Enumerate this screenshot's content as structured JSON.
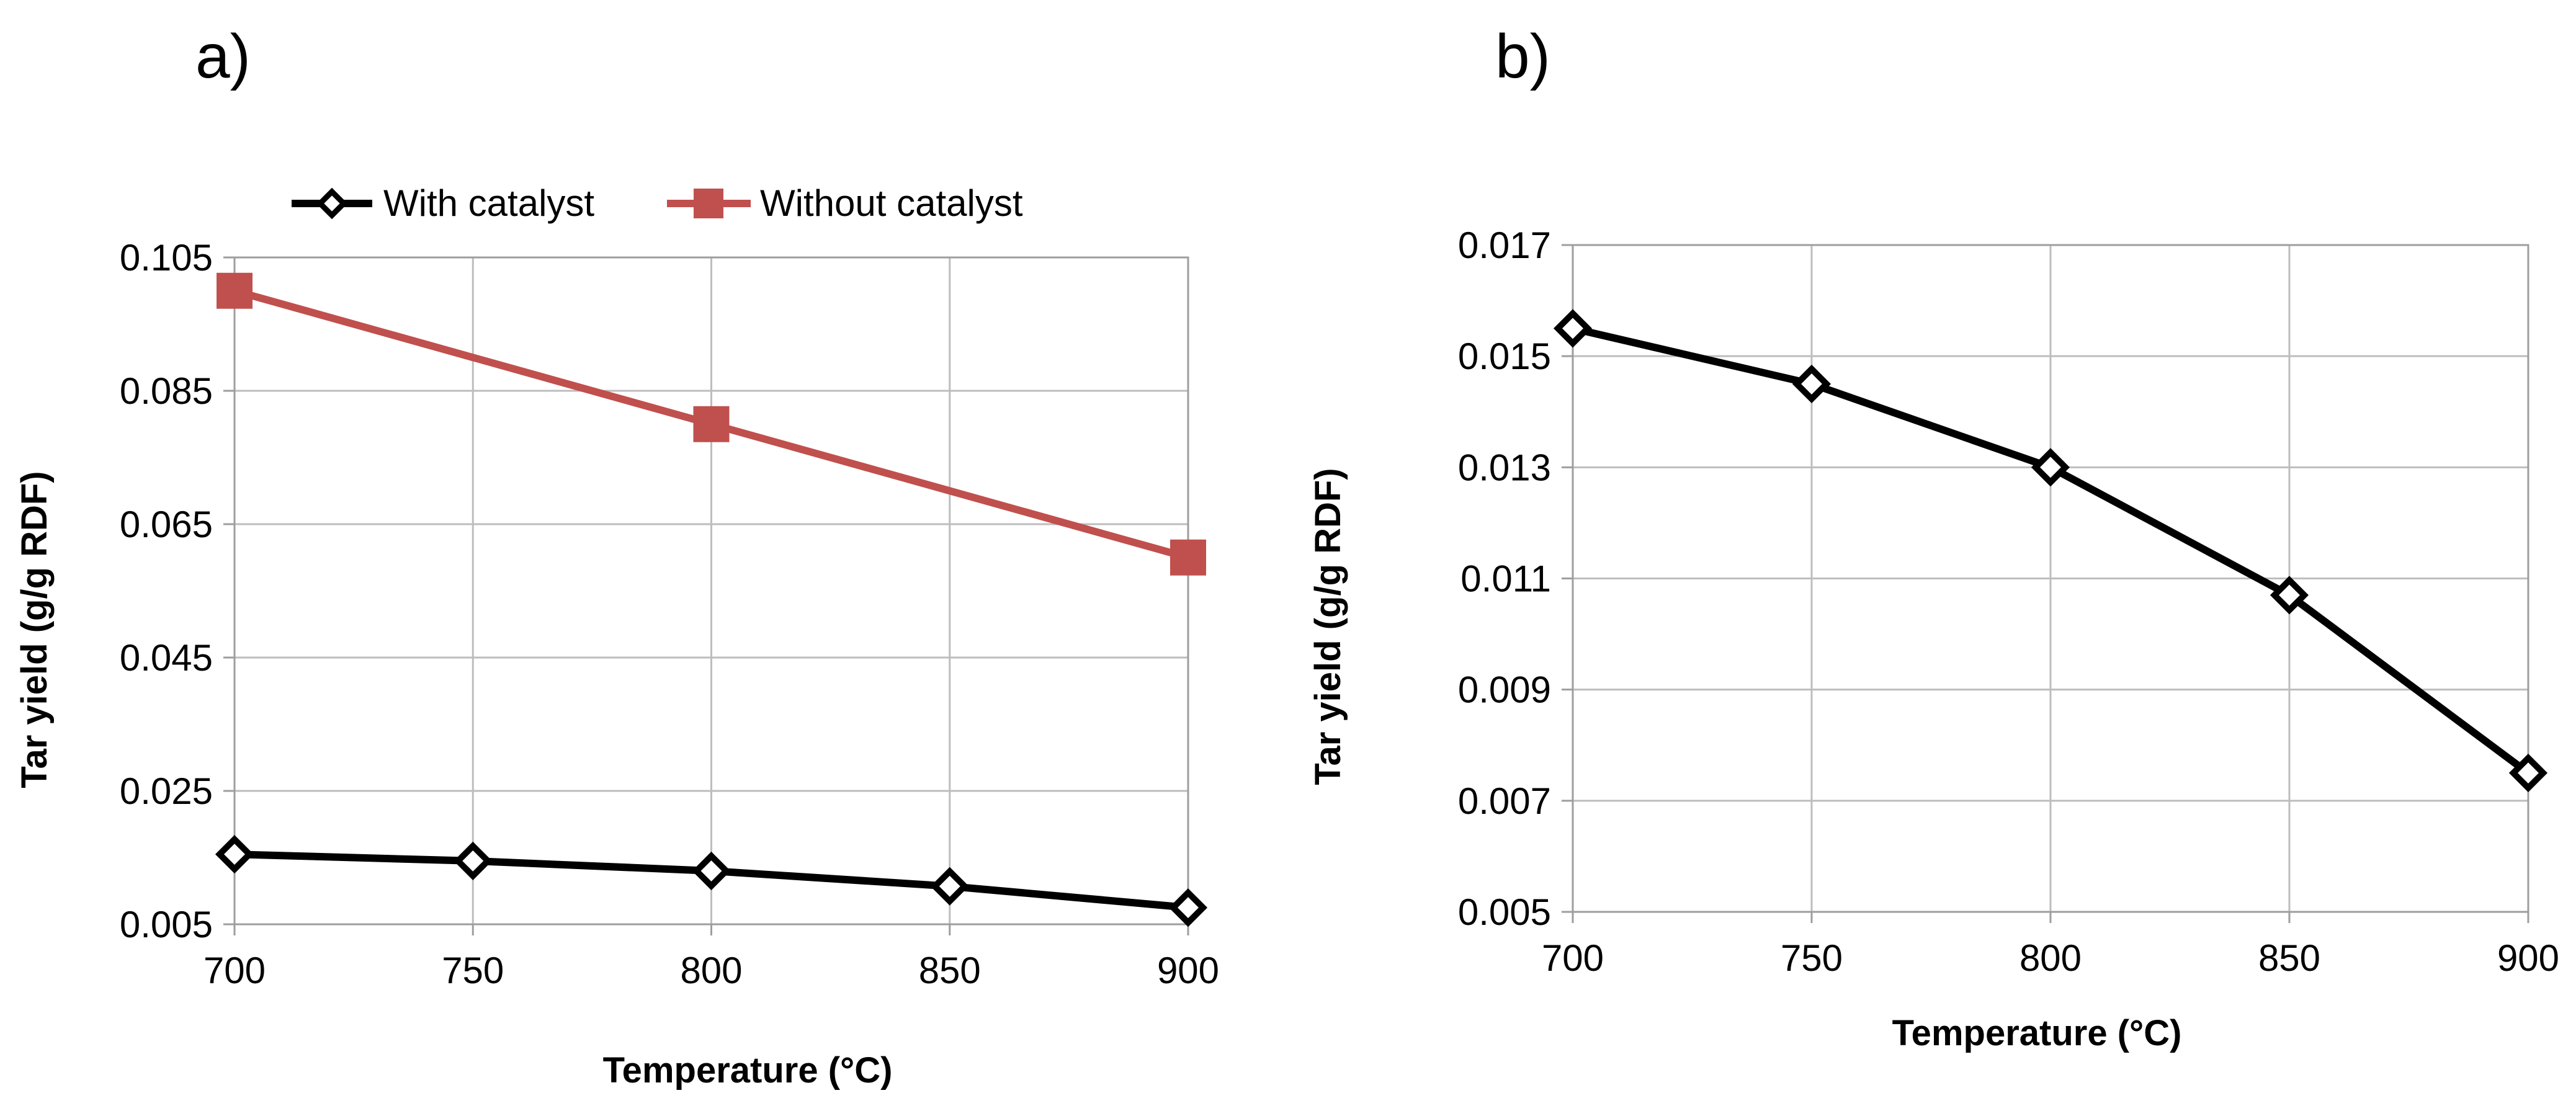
{
  "chart_data": [
    {
      "panel_label": "a)",
      "type": "line",
      "xlabel": "Temperature (°C)",
      "ylabel": "Tar yield (g/g RDF)",
      "x": [
        700,
        750,
        800,
        850,
        900
      ],
      "x_ticks": [
        "700",
        "750",
        "800",
        "850",
        "900"
      ],
      "xlim": [
        700,
        900
      ],
      "y_ticks": [
        "0.005",
        "0.025",
        "0.045",
        "0.065",
        "0.085",
        "0.105"
      ],
      "ylim": [
        0.005,
        0.105
      ],
      "grid": true,
      "legend_position": "top",
      "series": [
        {
          "name": "With catalyst",
          "marker": "diamond-open",
          "color": "#000000",
          "x": [
            700,
            750,
            800,
            850,
            900
          ],
          "values": [
            0.0155,
            0.0145,
            0.013,
            0.0107,
            0.0075
          ]
        },
        {
          "name": "Without catalyst",
          "marker": "square",
          "color": "#c0504d",
          "x": [
            700,
            800,
            900
          ],
          "values": [
            0.1,
            0.08,
            0.06
          ]
        }
      ]
    },
    {
      "panel_label": "b)",
      "type": "line",
      "xlabel": "Temperature (°C)",
      "ylabel": "Tar yield (g/g RDF)",
      "x": [
        700,
        750,
        800,
        850,
        900
      ],
      "x_ticks": [
        "700",
        "750",
        "800",
        "850",
        "900"
      ],
      "xlim": [
        700,
        900
      ],
      "y_ticks": [
        "0.005",
        "0.007",
        "0.009",
        "0.011",
        "0.013",
        "0.015",
        "0.017"
      ],
      "ylim": [
        0.005,
        0.017
      ],
      "grid": true,
      "series": [
        {
          "name": "With catalyst",
          "marker": "diamond-open",
          "color": "#000000",
          "x": [
            700,
            750,
            800,
            850,
            900
          ],
          "values": [
            0.0155,
            0.0145,
            0.013,
            0.0107,
            0.0075
          ]
        }
      ]
    }
  ]
}
